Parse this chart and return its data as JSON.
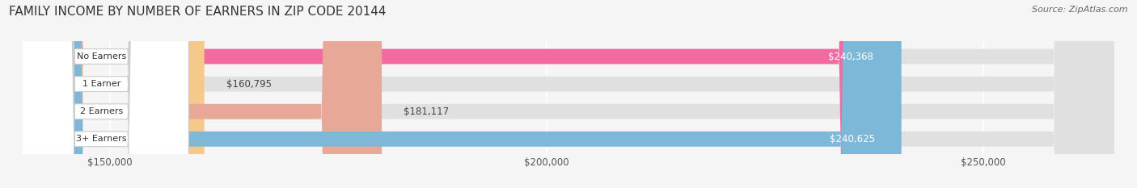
{
  "title": "FAMILY INCOME BY NUMBER OF EARNERS IN ZIP CODE 20144",
  "source": "Source: ZipAtlas.com",
  "categories": [
    "No Earners",
    "1 Earner",
    "2 Earners",
    "3+ Earners"
  ],
  "values": [
    240368,
    160795,
    181117,
    240625
  ],
  "bar_colors": [
    "#F06BA0",
    "#F5C98A",
    "#E8A898",
    "#7EB8D8"
  ],
  "value_labels": [
    "$240,368",
    "$160,795",
    "$181,117",
    "$240,625"
  ],
  "xlim_min": 140000,
  "xlim_max": 265000,
  "x_ticks": [
    150000,
    200000,
    250000
  ],
  "x_tick_labels": [
    "$150,000",
    "$200,000",
    "$250,000"
  ],
  "bg_color": "#f5f5f5",
  "bar_bg_color": "#e0e0e0",
  "title_fontsize": 11,
  "source_fontsize": 8
}
